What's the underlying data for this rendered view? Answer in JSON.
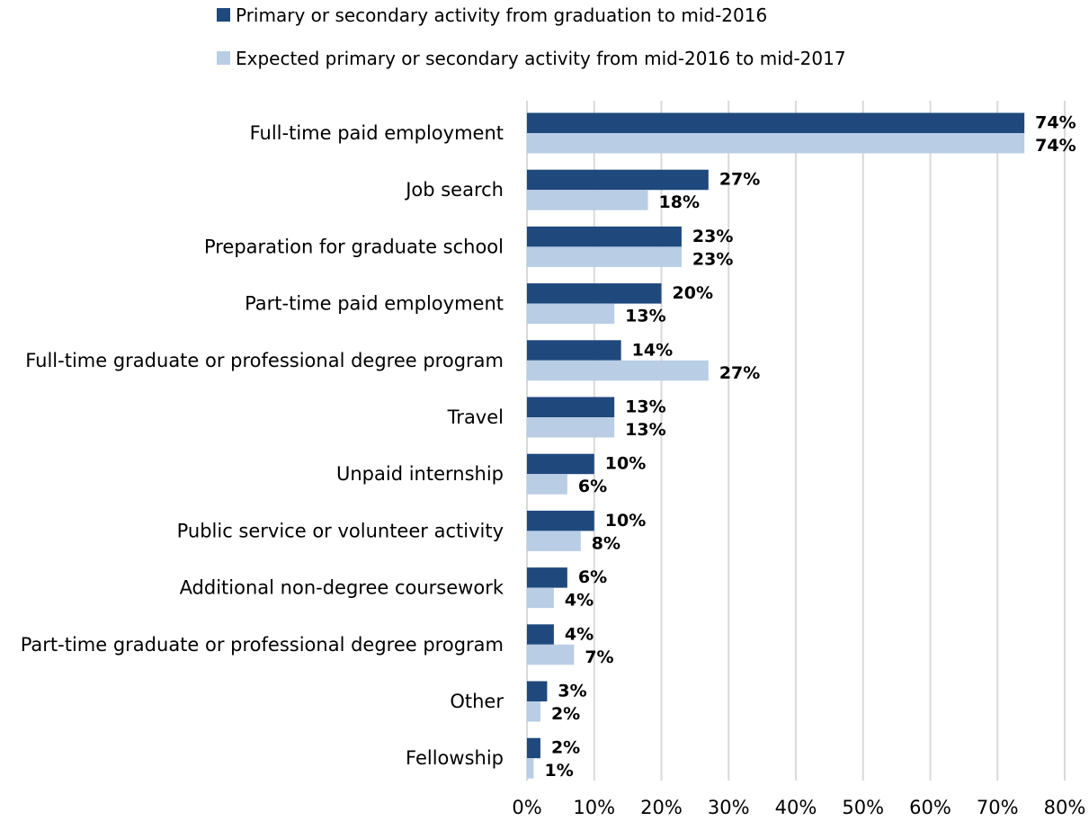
{
  "chart_data": {
    "type": "bar",
    "orientation": "horizontal",
    "categories": [
      "Full-time paid employment",
      "Job search",
      "Preparation for graduate school",
      "Part-time paid employment",
      "Full-time graduate or professional degree program",
      "Travel",
      "Unpaid internship",
      "Public service or volunteer activity",
      "Additional non-degree coursework",
      "Part-time graduate or professional degree program",
      "Other",
      "Fellowship"
    ],
    "series": [
      {
        "name": "Primary or secondary activity from graduation to mid-2016",
        "color": "#1f497d",
        "values": [
          74,
          27,
          23,
          20,
          14,
          13,
          10,
          10,
          6,
          4,
          3,
          2
        ],
        "labels": [
          "74%",
          "27%",
          "23%",
          "20%",
          "14%",
          "13%",
          "10%",
          "10%",
          "6%",
          "4%",
          "3%",
          "2%"
        ]
      },
      {
        "name": "Expected primary or secondary activity from mid-2016 to mid-2017",
        "color": "#b9cde5",
        "values": [
          74,
          18,
          23,
          13,
          27,
          13,
          6,
          8,
          4,
          7,
          2,
          1
        ],
        "labels": [
          "74%",
          "18%",
          "23%",
          "13%",
          "27%",
          "13%",
          "6%",
          "8%",
          "4%",
          "7%",
          "2%",
          "1%"
        ]
      }
    ],
    "xlim": [
      0,
      80
    ],
    "x_ticks": [
      "0%",
      "10%",
      "20%",
      "30%",
      "40%",
      "50%",
      "60%",
      "70%",
      "80%"
    ],
    "grid": true,
    "legend_position": "top"
  }
}
